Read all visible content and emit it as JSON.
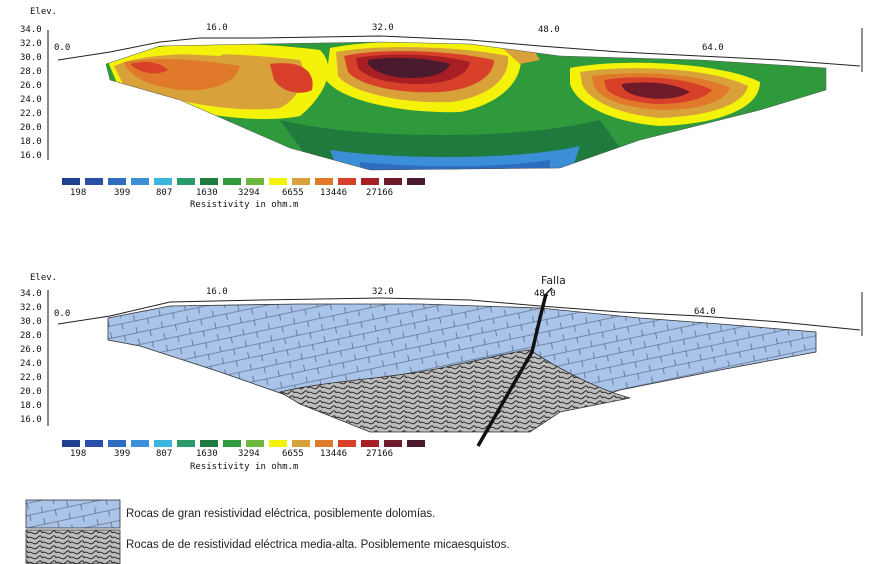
{
  "section_top": {
    "elev_label": "Elev.",
    "y_ticks": [
      "34.0",
      "32.0",
      "30.0",
      "28.0",
      "26.0",
      "24.0",
      "22.0",
      "20.0",
      "18.0",
      "16.0"
    ],
    "x_ticks": [
      "0.0",
      "16.0",
      "32.0",
      "48.0",
      "64.0"
    ],
    "scale_values": [
      "198",
      "399",
      "807",
      "1630",
      "3294",
      "6655",
      "13446",
      "27166"
    ],
    "scale_caption": "Resistivity in ohm.m"
  },
  "section_bottom": {
    "elev_label": "Elev.",
    "y_ticks": [
      "34.0",
      "32.0",
      "30.0",
      "28.0",
      "26.0",
      "24.0",
      "22.0",
      "20.0",
      "18.0",
      "16.0"
    ],
    "x_ticks": [
      "0.0",
      "16.0",
      "32.0",
      "48.0",
      "64.0"
    ],
    "scale_values": [
      "198",
      "399",
      "807",
      "1630",
      "3294",
      "6655",
      "13446",
      "27166"
    ],
    "scale_caption": "Resistivity in ohm.m",
    "fault_label": "Falla"
  },
  "color_scale": [
    "#1f3f8f",
    "#2a4fa8",
    "#2e6cc0",
    "#3a8fd6",
    "#3cb6dc",
    "#2a9a6a",
    "#1f7a3e",
    "#2f9a3c",
    "#6db83e",
    "#f5f20a",
    "#d8a13a",
    "#e07a2a",
    "#d8402a",
    "#a81e25",
    "#6e1a2a",
    "#4a1a2e"
  ],
  "legend": [
    {
      "text": "Rocas de gran resistividad eléctrica, posiblemente dolomías."
    },
    {
      "text": "Rocas de de resistividad eléctrica media-alta. Posiblemente micaesquistos."
    }
  ]
}
